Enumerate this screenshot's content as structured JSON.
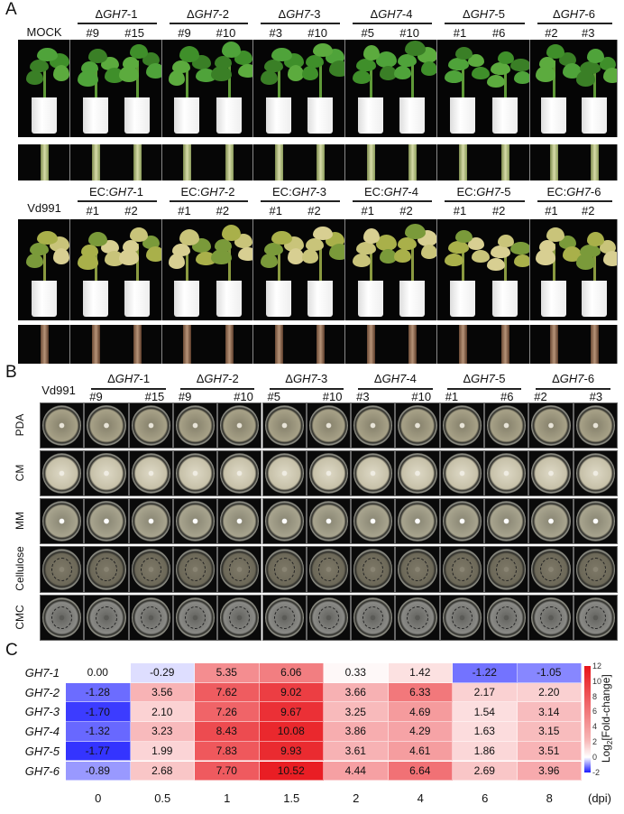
{
  "panel_a": {
    "letter": "A",
    "row1": {
      "control": "MOCK",
      "groups": [
        {
          "prefix": "Δ",
          "gene": "GH7",
          "suffix": "-1",
          "subs": [
            "#9",
            "#15"
          ]
        },
        {
          "prefix": "Δ",
          "gene": "GH7",
          "suffix": "-2",
          "subs": [
            "#9",
            "#10"
          ]
        },
        {
          "prefix": "Δ",
          "gene": "GH7",
          "suffix": "-3",
          "subs": [
            "#3",
            "#10"
          ]
        },
        {
          "prefix": "Δ",
          "gene": "GH7",
          "suffix": "-4",
          "subs": [
            "#5",
            "#10"
          ]
        },
        {
          "prefix": "Δ",
          "gene": "GH7",
          "suffix": "-5",
          "subs": [
            "#1",
            "#6"
          ]
        },
        {
          "prefix": "Δ",
          "gene": "GH7",
          "suffix": "-6",
          "subs": [
            "#2",
            "#3"
          ]
        }
      ]
    },
    "row2": {
      "control": "Vd991",
      "groups": [
        {
          "prefix": "EC:",
          "gene": "GH7",
          "suffix": "-1",
          "subs": [
            "#1",
            "#2"
          ]
        },
        {
          "prefix": "EC:",
          "gene": "GH7",
          "suffix": "-2",
          "subs": [
            "#1",
            "#2"
          ]
        },
        {
          "prefix": "EC:",
          "gene": "GH7",
          "suffix": "-3",
          "subs": [
            "#1",
            "#2"
          ]
        },
        {
          "prefix": "EC:",
          "gene": "GH7",
          "suffix": "-4",
          "subs": [
            "#1",
            "#2"
          ]
        },
        {
          "prefix": "EC:",
          "gene": "GH7",
          "suffix": "-5",
          "subs": [
            "#1",
            "#2"
          ]
        },
        {
          "prefix": "EC:",
          "gene": "GH7",
          "suffix": "-6",
          "subs": [
            "#1",
            "#2"
          ]
        }
      ]
    }
  },
  "panel_b": {
    "letter": "B",
    "control": "Vd991",
    "groups": [
      {
        "prefix": "Δ",
        "gene": "GH7",
        "suffix": "-1",
        "subs": [
          "#9",
          "#15"
        ]
      },
      {
        "prefix": "Δ",
        "gene": "GH7",
        "suffix": "-2",
        "subs": [
          "#9",
          "#10"
        ]
      },
      {
        "prefix": "Δ",
        "gene": "GH7",
        "suffix": "-3",
        "subs": [
          "#5",
          "#10"
        ]
      },
      {
        "prefix": "Δ",
        "gene": "GH7",
        "suffix": "-4",
        "subs": [
          "#3",
          "#10"
        ]
      },
      {
        "prefix": "Δ",
        "gene": "GH7",
        "suffix": "-5",
        "subs": [
          "#1",
          "#6"
        ]
      },
      {
        "prefix": "Δ",
        "gene": "GH7",
        "suffix": "-6",
        "subs": [
          "#2",
          "#3"
        ]
      }
    ],
    "media": [
      "PDA",
      "CM",
      "MM",
      "Cellulose",
      "CMC"
    ]
  },
  "panel_c": {
    "letter": "C"
  },
  "chart_data": {
    "type": "heatmap",
    "rows": [
      "GH7-1",
      "GH7-2",
      "GH7-3",
      "GH7-4",
      "GH7-5",
      "GH7-6"
    ],
    "columns": [
      "0",
      "0.5",
      "1",
      "1.5",
      "2",
      "4",
      "6",
      "8"
    ],
    "x_unit": "(dpi)",
    "values": [
      [
        0.0,
        -0.29,
        5.35,
        6.06,
        0.33,
        1.42,
        -1.22,
        -1.05
      ],
      [
        -1.28,
        3.56,
        7.62,
        9.02,
        3.66,
        6.33,
        2.17,
        2.2
      ],
      [
        -1.7,
        2.1,
        7.26,
        9.67,
        3.25,
        4.69,
        1.54,
        3.14
      ],
      [
        -1.32,
        3.23,
        8.43,
        10.08,
        3.86,
        4.29,
        1.63,
        3.15
      ],
      [
        -1.77,
        1.99,
        7.83,
        9.93,
        3.61,
        4.61,
        1.86,
        3.51
      ],
      [
        -0.89,
        2.68,
        7.7,
        10.52,
        4.44,
        6.64,
        2.69,
        3.96
      ]
    ],
    "labels": [
      [
        "0.00",
        "-0.29",
        "5.35",
        "6.06",
        "0.33",
        "1.42",
        "-1.22",
        "-1.05"
      ],
      [
        "-1.28",
        "3.56",
        "7.62",
        "9.02",
        "3.66",
        "6.33",
        "2.17",
        "2.20"
      ],
      [
        "-1.70",
        "2.10",
        "7.26",
        "9.67",
        "3.25",
        "4.69",
        "1.54",
        "3.14"
      ],
      [
        "-1.32",
        "3.23",
        "8.43",
        "10.08",
        "3.86",
        "4.29",
        "1.63",
        "3.15"
      ],
      [
        "-1.77",
        "1.99",
        "7.83",
        "9.93",
        "3.61",
        "4.61",
        "1.86",
        "3.51"
      ],
      [
        "-0.89",
        "2.68",
        "7.70",
        "10.52",
        "4.44",
        "6.64",
        "2.69",
        "3.96"
      ]
    ],
    "colorbar": {
      "label_prefix": "Log",
      "label_sub": "2",
      "label_suffix": "[Fold-change]",
      "range": [
        -2,
        12
      ],
      "ticks": [
        "12",
        "10",
        "8",
        "6",
        "4",
        "2",
        "0",
        "-2"
      ],
      "low_color": "#1a1aff",
      "mid_color": "#ffffff",
      "high_color": "#e8141a"
    }
  }
}
